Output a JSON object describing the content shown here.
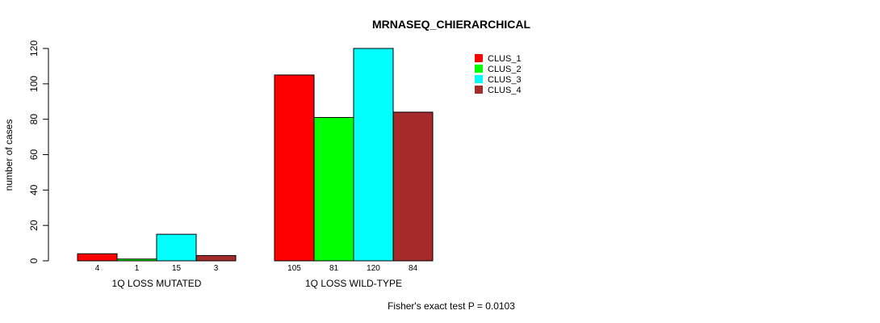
{
  "chart_data": {
    "type": "bar",
    "title": "MRNASEQ_CHIERARCHICAL",
    "ylabel": "number of cases",
    "xlabel": "",
    "ylim": [
      0,
      120
    ],
    "yticks": [
      0,
      20,
      40,
      60,
      80,
      100,
      120
    ],
    "categories": [
      "1Q LOSS MUTATED",
      "1Q LOSS WILD-TYPE"
    ],
    "series": [
      {
        "name": "CLUS_1",
        "color": "#ff0000",
        "values": [
          4,
          105
        ]
      },
      {
        "name": "CLUS_2",
        "color": "#00ff00",
        "values": [
          1,
          81
        ]
      },
      {
        "name": "CLUS_3",
        "color": "#00ffff",
        "values": [
          15,
          120
        ]
      },
      {
        "name": "CLUS_4",
        "color": "#a52a2a",
        "values": [
          3,
          84
        ]
      }
    ],
    "legend_position": "top-right",
    "annotation": "Fisher's exact test P = 0.0103"
  }
}
